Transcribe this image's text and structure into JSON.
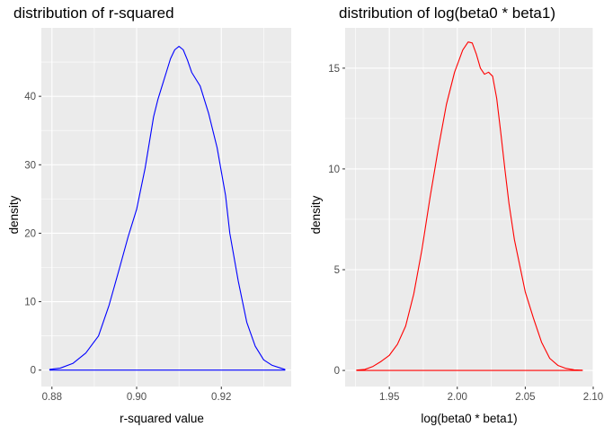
{
  "chart_data": [
    {
      "type": "line",
      "title": "distribution of r-squared",
      "xlabel": "r-squared value",
      "ylabel": "density",
      "xlim": [
        0.8775,
        0.9365
      ],
      "ylim": [
        -2.4,
        50.0
      ],
      "xticks": [
        0.88,
        0.9,
        0.92
      ],
      "xtick_labels": [
        "0.88",
        "0.90",
        "0.92"
      ],
      "yticks": [
        0,
        10,
        20,
        30,
        40
      ],
      "ytick_labels": [
        "0",
        "10",
        "20",
        "30",
        "40"
      ],
      "grid": true,
      "line_color": "#0000ff",
      "series": [
        {
          "x": [
            0.8795,
            0.882,
            0.885,
            0.888,
            0.891,
            0.8935,
            0.896,
            0.898,
            0.9,
            0.902,
            0.904,
            0.905,
            0.906,
            0.907,
            0.908,
            0.909,
            0.91,
            0.911,
            0.912,
            0.913,
            0.914,
            0.915,
            0.916,
            0.917,
            0.918,
            0.919,
            0.92,
            0.921,
            0.922,
            0.924,
            0.926,
            0.928,
            0.93,
            0.932,
            0.934,
            0.935
          ],
          "y": [
            0.1,
            0.3,
            1.0,
            2.5,
            5.0,
            9.5,
            15.0,
            19.5,
            23.5,
            29.5,
            37.0,
            39.5,
            41.5,
            43.5,
            45.5,
            46.8,
            47.3,
            46.8,
            45.3,
            43.5,
            42.5,
            41.5,
            39.5,
            37.5,
            35.0,
            32.5,
            29.0,
            25.5,
            20.0,
            13.0,
            7.0,
            3.5,
            1.5,
            0.7,
            0.3,
            0.1
          ]
        }
      ]
    },
    {
      "type": "line",
      "title": "distribution of log(beta0 * beta1)",
      "xlabel": "log(beta0 * beta1)",
      "ylabel": "density",
      "xlim": [
        1.9175,
        2.1
      ],
      "ylim": [
        -0.8,
        17.0
      ],
      "xticks": [
        1.95,
        2.0,
        2.05,
        2.1
      ],
      "xtick_labels": [
        "1.95",
        "2.00",
        "2.05",
        "2.10"
      ],
      "yticks": [
        0,
        5,
        10,
        15
      ],
      "ytick_labels": [
        "0",
        "5",
        "10",
        "15"
      ],
      "grid": true,
      "line_color": "#ff0000",
      "series": [
        {
          "x": [
            1.926,
            1.932,
            1.938,
            1.944,
            1.95,
            1.956,
            1.962,
            1.968,
            1.974,
            1.98,
            1.986,
            1.992,
            1.998,
            2.004,
            2.008,
            2.011,
            2.014,
            2.017,
            2.02,
            2.023,
            2.026,
            2.029,
            2.032,
            2.035,
            2.038,
            2.042,
            2.046,
            2.05,
            2.056,
            2.062,
            2.068,
            2.074,
            2.08,
            2.086,
            2.092
          ],
          "y": [
            0.02,
            0.05,
            0.2,
            0.45,
            0.75,
            1.3,
            2.2,
            3.8,
            6.0,
            8.6,
            11.0,
            13.2,
            14.8,
            15.9,
            16.3,
            16.25,
            15.7,
            15.0,
            14.7,
            14.8,
            14.6,
            13.5,
            11.8,
            10.0,
            8.3,
            6.5,
            5.2,
            3.9,
            2.6,
            1.4,
            0.6,
            0.25,
            0.1,
            0.03,
            0.01
          ]
        }
      ]
    }
  ]
}
